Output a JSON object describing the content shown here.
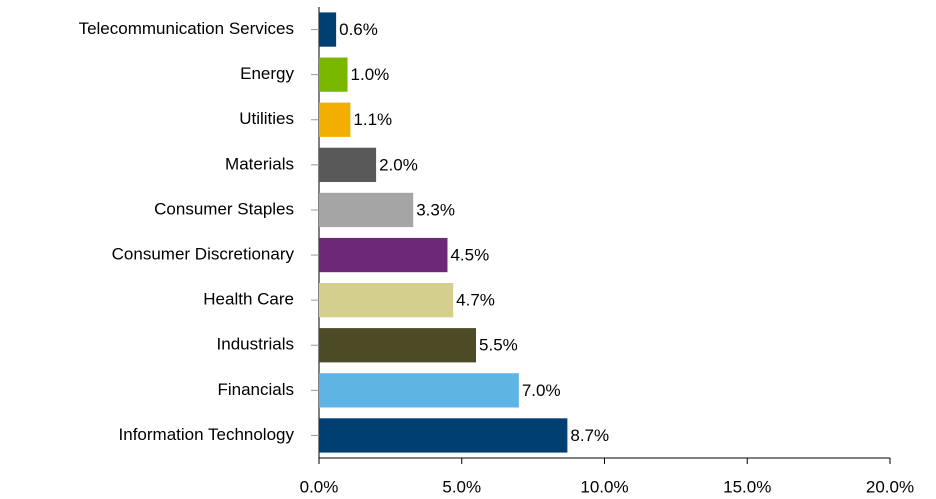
{
  "chart_data": {
    "type": "barh",
    "categories": [
      "Telecommunication Services",
      "Energy",
      "Utilities",
      "Materials",
      "Consumer Staples",
      "Consumer Discretionary",
      "Health Care",
      "Industrials",
      "Financials",
      "Information Technology"
    ],
    "values": [
      0.6,
      1.0,
      1.1,
      2.0,
      3.3,
      4.5,
      4.7,
      5.5,
      7.0,
      8.7
    ],
    "value_labels": [
      "0.6%",
      "1.0%",
      "1.1%",
      "2.0%",
      "3.3%",
      "4.5%",
      "4.7%",
      "5.5%",
      "7.0%",
      "8.7%"
    ],
    "colors": [
      "#003f72",
      "#7ab800",
      "#f2af00",
      "#595959",
      "#a5a5a5",
      "#6e2878",
      "#d4cf8d",
      "#4d4a26",
      "#5eb5e3",
      "#003f72"
    ],
    "xlim": [
      0,
      20
    ],
    "xticks": [
      {
        "value": 0,
        "label": "0.0%"
      },
      {
        "value": 5,
        "label": "5.0%"
      },
      {
        "value": 10,
        "label": "10.0%"
      },
      {
        "value": 15,
        "label": "15.0%"
      },
      {
        "value": 20,
        "label": "20.0%"
      }
    ]
  }
}
